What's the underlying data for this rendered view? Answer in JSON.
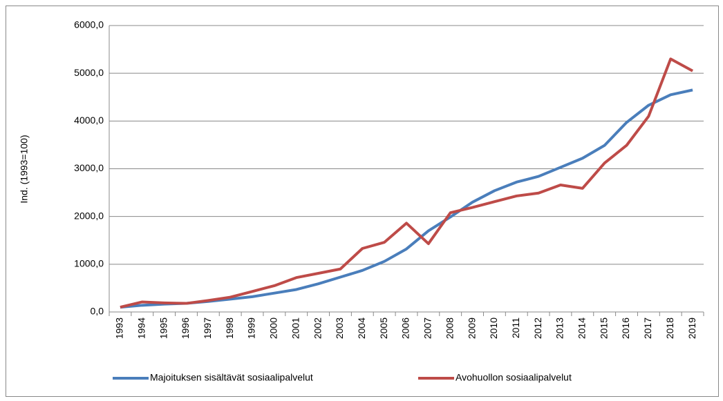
{
  "chart_data": {
    "type": "line",
    "y_label": "Ind. (1993=100)",
    "categories": [
      "1993",
      "1994",
      "1995",
      "1996",
      "1997",
      "1998",
      "1999",
      "2000",
      "2001",
      "2002",
      "2003",
      "2004",
      "2005",
      "2006",
      "2007",
      "2008",
      "2009",
      "2010",
      "2011",
      "2012",
      "2013",
      "2014",
      "2015",
      "2016",
      "2017",
      "2018",
      "2019"
    ],
    "series": [
      {
        "name": "Majoituksen sisältävät sosiaalipalvelut",
        "color": "#4a7ebb",
        "values": [
          100,
          140,
          165,
          180,
          220,
          270,
          320,
          395,
          470,
          590,
          730,
          870,
          1060,
          1320,
          1700,
          1990,
          2300,
          2540,
          2720,
          2840,
          3030,
          3220,
          3490,
          3970,
          4330,
          4550,
          4650
        ]
      },
      {
        "name": "Avohuollon sosiaalipalvelut",
        "color": "#be4b48",
        "values": [
          100,
          210,
          190,
          180,
          240,
          310,
          430,
          550,
          720,
          810,
          900,
          1330,
          1460,
          1860,
          1430,
          2080,
          2190,
          2310,
          2430,
          2490,
          2660,
          2590,
          3120,
          3490,
          4100,
          5300,
          5050
        ]
      }
    ],
    "ylim": [
      0,
      6000
    ],
    "yticks": [
      {
        "value": 0,
        "label": "0,0"
      },
      {
        "value": 1000,
        "label": "1000,0"
      },
      {
        "value": 2000,
        "label": "2000,0"
      },
      {
        "value": 3000,
        "label": "3000,0"
      },
      {
        "value": 4000,
        "label": "4000,0"
      },
      {
        "value": 5000,
        "label": "5000,0"
      },
      {
        "value": 6000,
        "label": "6000,0"
      }
    ],
    "grid": true,
    "legend": "bottom"
  }
}
